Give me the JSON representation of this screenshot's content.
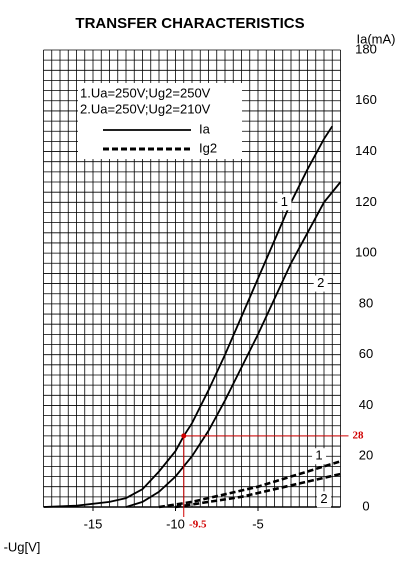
{
  "chart_data": {
    "type": "line",
    "title": "TRANSFER CHARACTERISTICS",
    "y_label": "Ia(mA)",
    "x_label": "-Ug[V]",
    "xlim": [
      -18,
      0
    ],
    "ylim": [
      0,
      180
    ],
    "xticks": [
      -15,
      -10,
      -5
    ],
    "yticks": [
      0,
      20,
      40,
      60,
      80,
      100,
      120,
      140,
      160,
      180
    ],
    "grid": {
      "x_step": 0.5,
      "y_step": 4
    },
    "legend": {
      "conditions": [
        "1.Ua=250V;Ug2=250V",
        "2.Ua=250V;Ug2=210V"
      ],
      "styles": [
        {
          "label": "Ia",
          "dash": "solid"
        },
        {
          "label": "Ig2",
          "dash": "dashed"
        }
      ]
    },
    "series": [
      {
        "label": "1",
        "dash": "solid",
        "color": "#000000",
        "x": [
          -18,
          -16,
          -14,
          -13,
          -12,
          -11,
          -10,
          -9.5,
          -9,
          -8,
          -7,
          -6,
          -5,
          -4,
          -3,
          -2,
          -1,
          -0.5
        ],
        "values": [
          0,
          0.5,
          2,
          3.5,
          7,
          14,
          22,
          28,
          33,
          46,
          60,
          75,
          90,
          105,
          120,
          133,
          145,
          150
        ]
      },
      {
        "label": "2",
        "dash": "solid",
        "color": "#000000",
        "x": [
          -13,
          -12,
          -11,
          -10,
          -9,
          -8,
          -7,
          -6,
          -5,
          -4,
          -3,
          -2,
          -1,
          0
        ],
        "values": [
          0,
          2,
          6,
          12,
          20,
          30,
          42,
          55,
          68,
          82,
          96,
          108,
          120,
          128
        ]
      },
      {
        "label": "1",
        "dash": "dashed",
        "color": "#000000",
        "x": [
          -11,
          -10,
          -9,
          -8,
          -7,
          -6,
          -5,
          -4,
          -3,
          -2,
          -1,
          0
        ],
        "values": [
          0,
          1,
          2,
          3.5,
          5,
          6.5,
          8,
          10,
          12,
          14,
          16,
          18
        ]
      },
      {
        "label": "2",
        "dash": "dashed",
        "color": "#000000",
        "x": [
          -10,
          -9,
          -8,
          -7,
          -6,
          -5,
          -4,
          -3,
          -2,
          -1,
          0
        ],
        "values": [
          0,
          1,
          2,
          3,
          4,
          5.5,
          7,
          8.5,
          10,
          11.5,
          13
        ]
      }
    ],
    "marker": {
      "x": -9.5,
      "y": 28,
      "color": "#d00000"
    }
  }
}
